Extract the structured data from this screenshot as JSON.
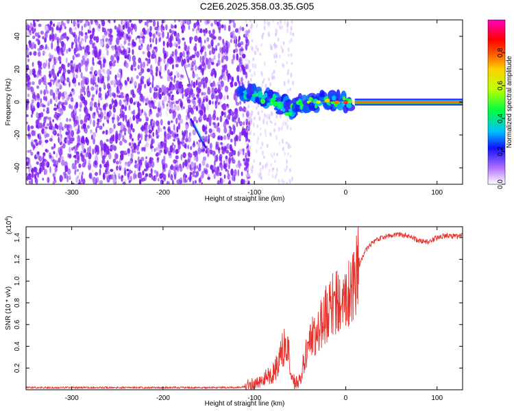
{
  "title": "C2E6.2025.358.03.35.G05",
  "chart_data": [
    {
      "type": "heatmap",
      "name": "spectrogram",
      "xlabel": "Height of straight line (km)",
      "ylabel": "Frequency (Hz)",
      "xlim": [
        -350,
        128
      ],
      "ylim": [
        -50,
        50
      ],
      "xticks": [
        -300,
        -200,
        -100,
        0,
        100
      ],
      "xtick_labels": [
        "-300",
        "-200",
        "-100",
        "0",
        "100"
      ],
      "yticks": [
        -40,
        -20,
        0,
        20,
        40
      ],
      "ytick_labels": [
        "-40",
        "-20",
        "0",
        "20",
        "40"
      ],
      "noise_region": {
        "x_from": -350,
        "x_to": -110,
        "level": 0.15
      },
      "streak": {
        "x_from": -170,
        "x_to": -153,
        "y_from": -10,
        "y_to": -28
      },
      "signal_band": {
        "x_from": -110,
        "x_to": 128,
        "frequency": 0,
        "points": [
          {
            "x": -110,
            "y": 6,
            "amp": 0.35
          },
          {
            "x": -100,
            "y": 4,
            "amp": 0.4
          },
          {
            "x": -90,
            "y": 3,
            "amp": 0.35
          },
          {
            "x": -80,
            "y": 1,
            "amp": 0.45
          },
          {
            "x": -70,
            "y": -2,
            "amp": 0.4
          },
          {
            "x": -60,
            "y": -5,
            "amp": 0.35
          },
          {
            "x": -50,
            "y": -1,
            "amp": 0.45
          },
          {
            "x": -40,
            "y": 0,
            "amp": 0.55
          },
          {
            "x": -30,
            "y": 0,
            "amp": 0.6
          },
          {
            "x": -20,
            "y": 1,
            "amp": 0.7
          },
          {
            "x": -10,
            "y": 0,
            "amp": 0.8
          },
          {
            "x": 0,
            "y": 0,
            "amp": 0.9
          },
          {
            "x": 20,
            "y": 0,
            "amp": 0.95
          },
          {
            "x": 60,
            "y": 0,
            "amp": 0.95
          },
          {
            "x": 128,
            "y": 0,
            "amp": 0.95
          }
        ]
      },
      "colorbar": {
        "label": "Normalized spectral amplitude",
        "range": [
          0,
          1
        ],
        "ticks": [
          0.0,
          0.2,
          0.4,
          0.6,
          0.8
        ],
        "tick_labels": [
          "0.0",
          "0.2",
          "0.4",
          "0.6",
          "0.8"
        ]
      }
    },
    {
      "type": "line",
      "name": "snr",
      "xlabel": "Height of straight line (km)",
      "ylabel": "SNR (10 * v/v)",
      "y_multiplier": "(x10",
      "y_multiplier_exp": "4",
      "y_multiplier_close": ")",
      "xlim": [
        -350,
        128
      ],
      "ylim": [
        0,
        1.5
      ],
      "xticks": [
        -300,
        -200,
        -100,
        0,
        100
      ],
      "xtick_labels": [
        "-300",
        "-200",
        "-100",
        "0",
        "100"
      ],
      "yticks": [
        0.2,
        0.4,
        0.6,
        0.8,
        1.0,
        1.2,
        1.4
      ],
      "ytick_labels": [
        "0.2",
        "0.4",
        "0.6",
        "0.8",
        "1.0",
        "1.2",
        "1.4"
      ],
      "color": "#e8302a",
      "series": [
        {
          "name": "SNR",
          "x": [
            -350,
            -300,
            -250,
            -200,
            -150,
            -120,
            -110,
            -100,
            -90,
            -80,
            -75,
            -70,
            -65,
            -62,
            -60,
            -55,
            -50,
            -45,
            -40,
            -35,
            -30,
            -25,
            -20,
            -15,
            -10,
            -5,
            0,
            5,
            10,
            15,
            20,
            25,
            30,
            40,
            50,
            60,
            70,
            80,
            90,
            100,
            110,
            120,
            128
          ],
          "y": [
            0.02,
            0.02,
            0.02,
            0.02,
            0.02,
            0.02,
            0.03,
            0.05,
            0.1,
            0.15,
            0.22,
            0.35,
            0.42,
            0.3,
            0.1,
            0.06,
            0.1,
            0.28,
            0.4,
            0.5,
            0.55,
            0.65,
            0.72,
            0.78,
            0.8,
            0.82,
            0.85,
            0.95,
            1.05,
            1.15,
            1.25,
            1.32,
            1.36,
            1.4,
            1.42,
            1.43,
            1.41,
            1.37,
            1.36,
            1.4,
            1.42,
            1.41,
            1.42
          ]
        }
      ]
    }
  ]
}
